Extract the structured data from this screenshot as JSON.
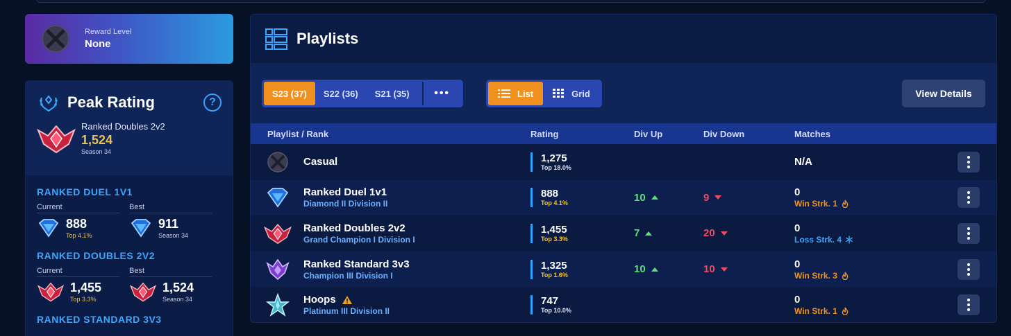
{
  "reward": {
    "label": "Reward Level",
    "value": "None"
  },
  "peak": {
    "title": "Peak Rating",
    "help": "?",
    "best": {
      "playlist": "Ranked Doubles 2v2",
      "rating": "1,524",
      "season": "Season 34"
    },
    "sections": [
      {
        "title": "RANKED DUEL 1V1",
        "current": {
          "label": "Current",
          "value": "888",
          "sub": "Top 4.1%"
        },
        "best": {
          "label": "Best",
          "value": "911",
          "sub": "Season 34"
        }
      },
      {
        "title": "RANKED DOUBLES 2V2",
        "current": {
          "label": "Current",
          "value": "1,455",
          "sub": "Top 3.3%"
        },
        "best": {
          "label": "Best",
          "value": "1,524",
          "sub": "Season 34"
        }
      },
      {
        "title": "RANKED STANDARD 3V3"
      }
    ]
  },
  "playlists": {
    "title": "Playlists",
    "seasons": [
      "S23 (37)",
      "S22 (36)",
      "S21 (35)"
    ],
    "more": "•••",
    "view_modes": [
      "List",
      "Grid"
    ],
    "details_button": "View Details",
    "columns": [
      "Playlist / Rank",
      "Rating",
      "Div Up",
      "Div Down",
      "Matches"
    ],
    "rows": [
      {
        "name": "Casual",
        "rank": "",
        "rating": "1,275",
        "top": "Top 18.0%",
        "div_up": "",
        "div_down": "",
        "matches": "N/A",
        "streak": ""
      },
      {
        "name": "Ranked Duel 1v1",
        "rank": "Diamond II Division II",
        "rating": "888",
        "top": "Top 4.1%",
        "div_up": "10",
        "div_down": "9",
        "matches": "0",
        "streak": "Win Strk. 1"
      },
      {
        "name": "Ranked Doubles 2v2",
        "rank": "Grand Champion I Division I",
        "rating": "1,455",
        "top": "Top 3.3%",
        "div_up": "7",
        "div_down": "20",
        "matches": "0",
        "streak": "Loss Strk. 4"
      },
      {
        "name": "Ranked Standard 3v3",
        "rank": "Champion III Division I",
        "rating": "1,325",
        "top": "Top 1.6%",
        "div_up": "10",
        "div_down": "10",
        "matches": "0",
        "streak": "Win Strk. 3"
      },
      {
        "name": "Hoops",
        "rank": "Platinum III Division II",
        "rating": "747",
        "top": "Top 10.0%",
        "div_up": "",
        "div_down": "",
        "matches": "0",
        "streak": "Win Strk. 1"
      }
    ]
  },
  "colors": {
    "accent_orange": "#f0901f",
    "accent_blue": "#3ea6ff",
    "gold": "#e8c35a",
    "up_green": "#5ee07a",
    "down_red": "#f04c61"
  }
}
